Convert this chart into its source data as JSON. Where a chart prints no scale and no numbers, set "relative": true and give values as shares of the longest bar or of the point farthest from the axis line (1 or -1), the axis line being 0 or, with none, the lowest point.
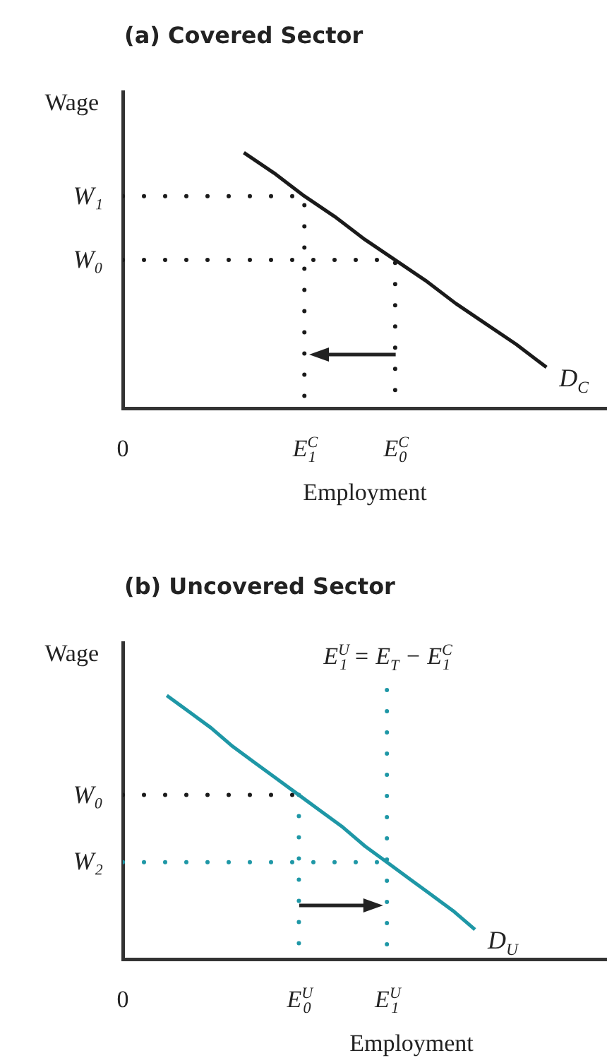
{
  "chart_data": [
    {
      "type": "line",
      "relative": true,
      "title": "(a) Covered Sector",
      "xlabel": "Employment",
      "ylabel": "Wage",
      "categories": [
        "0",
        null,
        null,
        null,
        null,
        null,
        "E$^{C}$$_{1}$",
        null,
        null,
        "E$^{C}$$_{0}$",
        null,
        null,
        null,
        null,
        null,
        null,
        null
      ],
      "annotations": [
        {
          "text": "W₀",
          "x": "0",
          "y": 0.58
        },
        {
          "text": "W₁",
          "x": "0",
          "y": 0.83
        }
      ],
      "series": [
        {
          "name": "D$_{C}$",
          "color": "#1a1a1a",
          "values": [
            null,
            null,
            null,
            null,
            1,
            0.92,
            0.83,
            0.75,
            0.66,
            0.58,
            0.5,
            0.41,
            0.33,
            0.25,
            0.16,
            null,
            null
          ]
        },
        {
          "color": "#1a1a1a",
          "line_style": "dotted",
          "x": [
            "0",
            "E$^{C}$$_{1}$",
            "E$^{C}$$_{1}$"
          ],
          "values": [
            0.83,
            0.83,
            0
          ]
        },
        {
          "color": "#1a1a1a",
          "line_style": "dotted",
          "x": [
            "0",
            "E$^{C}$$_{0}$",
            "E$^{C}$$_{0}$"
          ],
          "values": [
            0.58,
            0.58,
            0
          ]
        }
      ]
    },
    {
      "type": "line",
      "relative": true,
      "title": "(b) Uncovered Sector",
      "xlabel": "Employment",
      "ylabel": "Wage",
      "categories": [
        "0",
        null,
        null,
        null,
        null,
        null,
        null,
        null,
        "E$^{U}$$_{0}$",
        null,
        null,
        null,
        "E$^{U}$$_{1}$",
        null,
        null,
        null,
        null,
        null,
        null,
        null,
        null,
        null,
        null
      ],
      "annotations": [
        {
          "text": "W₂",
          "x": "0",
          "y": 0.36
        },
        {
          "text": "W₀",
          "x": "0",
          "y": 0.61
        },
        {
          "text": "E$^{U}$$_{1}$ = E$_{T}$ − E$^{C}$$_{1}$",
          "x": "E$^{U}$$_{1}$",
          "y": 1
        }
      ],
      "series": [
        {
          "name": "D$_{U}$",
          "color": "#1e97a6",
          "values": [
            null,
            null,
            0.98,
            0.92,
            0.86,
            0.79,
            0.73,
            0.67,
            0.61,
            0.55,
            0.49,
            0.42,
            0.36,
            0.3,
            0.24,
            0.18,
            0.11,
            null,
            null,
            null,
            null,
            null,
            null
          ]
        },
        {
          "color": "#1a1a1a",
          "line_style": "dotted",
          "x": [
            "0",
            "E$^{U}$$_{0}$"
          ],
          "values": [
            0.61,
            0.61
          ]
        },
        {
          "color": "#1e97a6",
          "line_style": "dotted",
          "x": [
            "E$^{U}$$_{0}$",
            "E$^{U}$$_{0}$"
          ],
          "values": [
            0.61,
            0
          ]
        },
        {
          "color": "#1e97a6",
          "line_style": "dotted",
          "x": [
            "0",
            "E$^{U}$$_{1}$"
          ],
          "values": [
            0.36,
            0.36
          ]
        },
        {
          "color": "#1e97a6",
          "line_style": "dotted",
          "x": [
            "E$^{U}$$_{1}$",
            "E$^{U}$$_{1}$"
          ],
          "values": [
            1,
            0
          ]
        }
      ]
    }
  ]
}
